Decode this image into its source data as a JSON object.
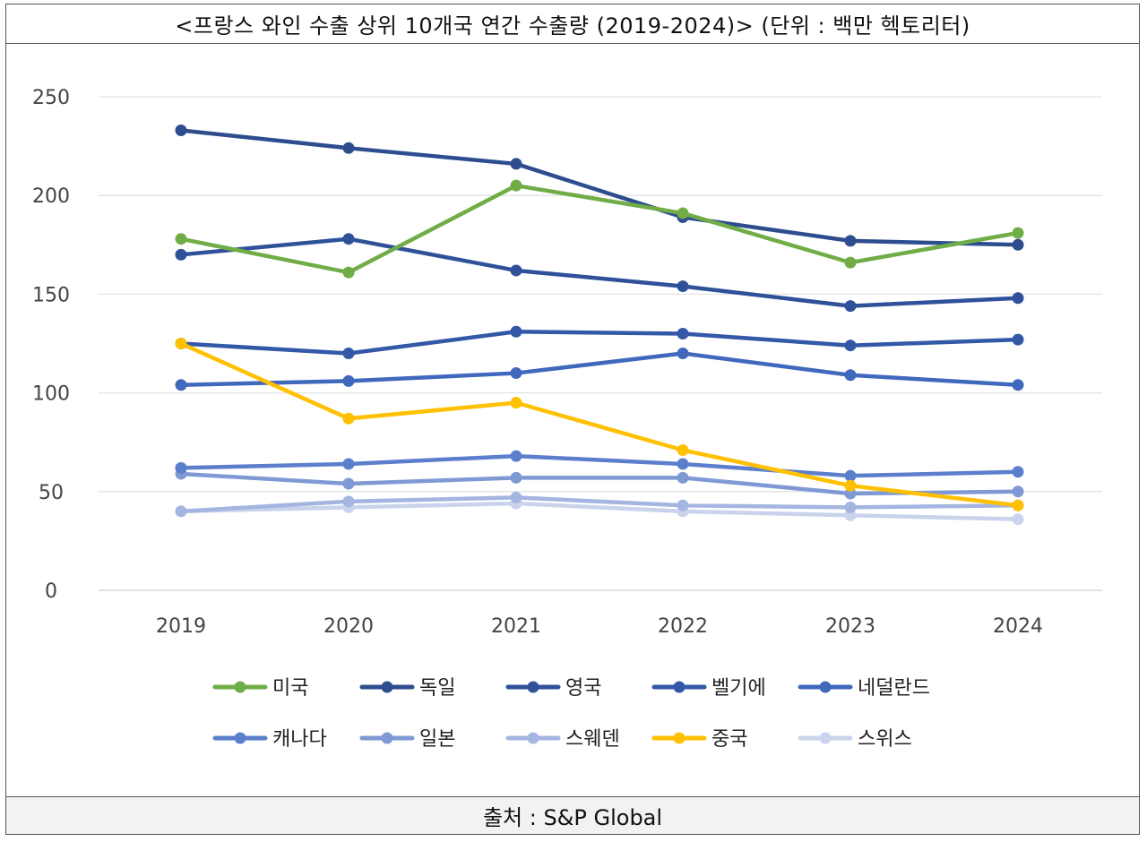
{
  "title": "<프랑스 와인 수출 상위 10개국 연간 수출량 (2019-2024)> (단위 : 백만 헥토리터)",
  "source": "출처 : S&P Global",
  "chart_data": {
    "type": "line",
    "title": "<프랑스 와인 수출 상위 10개국 연간 수출량 (2019-2024)> (단위 : 백만 헥토리터)",
    "xlabel": "",
    "ylabel": "",
    "x": [
      "2019",
      "2020",
      "2021",
      "2022",
      "2023",
      "2024"
    ],
    "ylim": [
      0,
      250
    ],
    "yticks": [
      0,
      50,
      100,
      150,
      200,
      250
    ],
    "grid": true,
    "legend_position": "bottom",
    "series": [
      {
        "name": "미국",
        "color": "#70ad47",
        "values": [
          178,
          161,
          205,
          191,
          166,
          181
        ]
      },
      {
        "name": "독일",
        "color": "#2e4d8f",
        "values": [
          233,
          224,
          216,
          189,
          177,
          175
        ]
      },
      {
        "name": "영국",
        "color": "#2f519a",
        "values": [
          170,
          178,
          162,
          154,
          144,
          148
        ]
      },
      {
        "name": "벨기에",
        "color": "#3358a8",
        "values": [
          125,
          120,
          131,
          130,
          124,
          127
        ]
      },
      {
        "name": "네덜란드",
        "color": "#4068bd",
        "values": [
          104,
          106,
          110,
          120,
          109,
          104
        ]
      },
      {
        "name": "캐나다",
        "color": "#5b7fcc",
        "values": [
          62,
          64,
          68,
          64,
          58,
          60
        ]
      },
      {
        "name": "일본",
        "color": "#7f99d4",
        "values": [
          59,
          54,
          57,
          57,
          49,
          50
        ]
      },
      {
        "name": "스웨덴",
        "color": "#a3b5e0",
        "values": [
          40,
          45,
          47,
          43,
          42,
          43
        ]
      },
      {
        "name": "중국",
        "color": "#ffc000",
        "values": [
          125,
          87,
          95,
          71,
          53,
          43
        ]
      },
      {
        "name": "스위스",
        "color": "#c9d3ec",
        "values": [
          40,
          42,
          44,
          40,
          38,
          36
        ]
      }
    ]
  }
}
